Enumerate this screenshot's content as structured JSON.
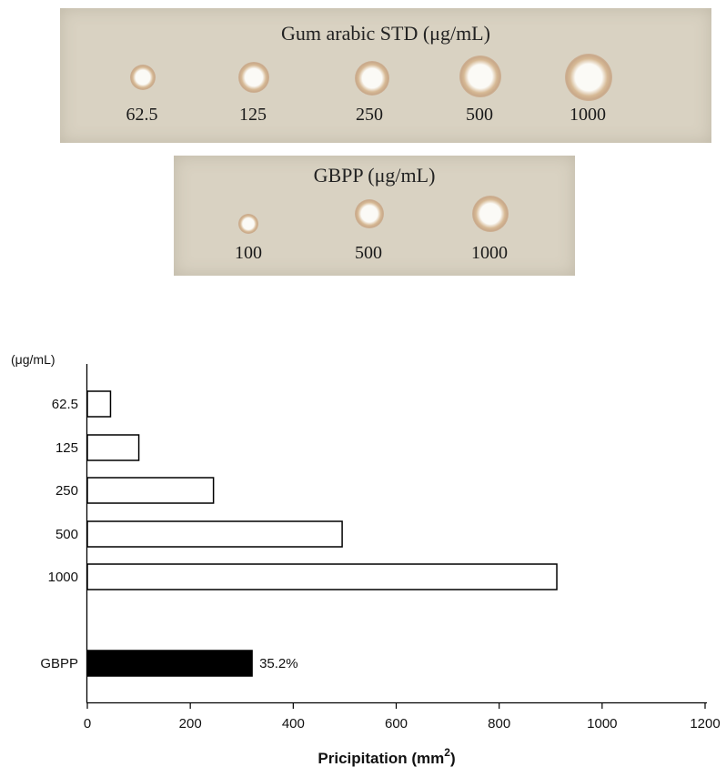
{
  "std_plate": {
    "title": "Gum arabic STD (μg/mL)",
    "wells": [
      {
        "label": "62.5"
      },
      {
        "label": "125"
      },
      {
        "label": "250"
      },
      {
        "label": "500"
      },
      {
        "label": "1000"
      }
    ]
  },
  "gbpp_plate": {
    "title": "GBPP (μg/mL)",
    "wells": [
      {
        "label": "100"
      },
      {
        "label": "500"
      },
      {
        "label": "1000"
      }
    ]
  },
  "chart_data": {
    "type": "bar",
    "orientation": "horizontal",
    "unit_label": "(μg/mL)",
    "categories": [
      "62.5",
      "125",
      "250",
      "500",
      "1000",
      "GBPP"
    ],
    "values": [
      45,
      100,
      245,
      495,
      912,
      320
    ],
    "bar_colors": [
      "#ffffff",
      "#ffffff",
      "#ffffff",
      "#ffffff",
      "#ffffff",
      "#000000"
    ],
    "data_labels": [
      "",
      "",
      "",
      "",
      "",
      "35.2%"
    ],
    "xlabel": "Pricipitation (mm",
    "xlabel_superscript": "2",
    "xlabel_close": ")",
    "xlim": [
      0,
      1200
    ],
    "xticks": [
      "0",
      "200",
      "400",
      "600",
      "800",
      "1000",
      "1200"
    ],
    "grid": false
  }
}
